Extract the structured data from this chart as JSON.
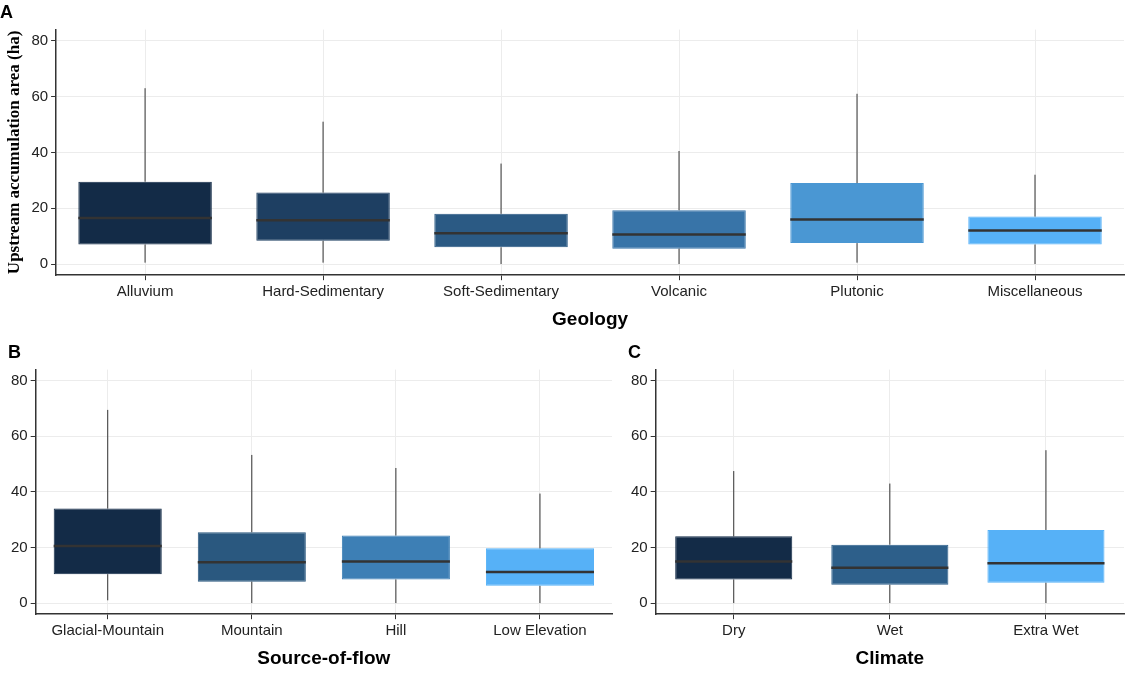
{
  "chart_data": [
    {
      "type": "box",
      "title": "A",
      "xlabel": "Geology",
      "ylabel": "Upstream accumulation area (ha)",
      "categories": [
        "Alluvium",
        "Hard-Sedimentary",
        "Soft-Sedimentary",
        "Volcanic",
        "Plutonic",
        "Miscellaneous"
      ],
      "colors": [
        "#132b47",
        "#1e3f62",
        "#2b5a84",
        "#3874a8",
        "#4a97d3",
        "#56b1f7"
      ],
      "boxes": [
        {
          "low": 0.5,
          "q1": 7,
          "median": 16.5,
          "q3": 29.5,
          "high": 63
        },
        {
          "low": 0.5,
          "q1": 8.3,
          "median": 15.7,
          "q3": 25.6,
          "high": 51
        },
        {
          "low": 0,
          "q1": 6,
          "median": 11,
          "q3": 18,
          "high": 36
        },
        {
          "low": 0,
          "q1": 5.5,
          "median": 10.6,
          "q3": 19.3,
          "high": 40.5
        },
        {
          "low": 0.5,
          "q1": 7.5,
          "median": 16,
          "q3": 29,
          "high": 61
        },
        {
          "low": 0,
          "q1": 7,
          "median": 12,
          "q3": 17,
          "high": 32
        }
      ],
      "ylim": [
        -4,
        84
      ],
      "yticks": [
        0,
        20,
        40,
        60,
        80
      ],
      "grid": true
    },
    {
      "type": "box",
      "title": "B",
      "xlabel": "Source-of-flow",
      "categories": [
        "Glacial-Mountain",
        "Mountain",
        "Hill",
        "Low Elevation"
      ],
      "colors": [
        "#132b47",
        "#2a587f",
        "#3d7fb5",
        "#56b1f7"
      ],
      "boxes": [
        {
          "low": 1,
          "q1": 10.4,
          "median": 20.5,
          "q3": 34,
          "high": 69.5
        },
        {
          "low": 0,
          "q1": 7.7,
          "median": 14.7,
          "q3": 25.5,
          "high": 53.3
        },
        {
          "low": 0,
          "q1": 8.5,
          "median": 15,
          "q3": 24.3,
          "high": 48.6
        },
        {
          "low": 0,
          "q1": 6.2,
          "median": 11.2,
          "q3": 19.7,
          "high": 39.4
        }
      ],
      "ylim": [
        -4,
        84
      ],
      "yticks": [
        0,
        20,
        40,
        60,
        80
      ],
      "grid": true
    },
    {
      "type": "box",
      "title": "C",
      "xlabel": "Climate",
      "categories": [
        "Dry",
        "Wet",
        "Extra Wet"
      ],
      "colors": [
        "#132b47",
        "#2d5f8a",
        "#56b1f7"
      ],
      "boxes": [
        {
          "low": 0,
          "q1": 8.5,
          "median": 15,
          "q3": 24,
          "high": 47.5
        },
        {
          "low": 0,
          "q1": 6.6,
          "median": 12.7,
          "q3": 21,
          "high": 43
        },
        {
          "low": 0,
          "q1": 7.3,
          "median": 14.3,
          "q3": 26.3,
          "high": 55
        }
      ],
      "ylim": [
        -4,
        84
      ],
      "yticks": [
        0,
        20,
        40,
        60,
        80
      ],
      "grid": true
    }
  ]
}
